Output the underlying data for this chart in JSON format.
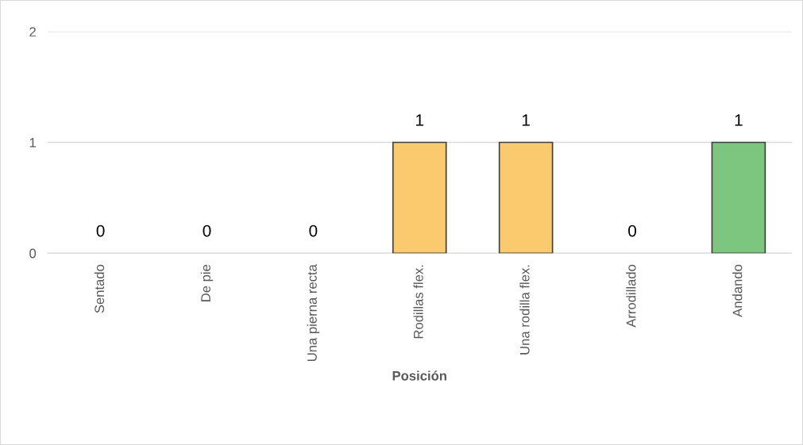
{
  "chart_data": {
    "type": "bar",
    "xlabel": "Posición",
    "categories": [
      "Sentado",
      "De pie",
      "Una pierna recta",
      "Rodillas flex.",
      "Una rodilla flex.",
      "Arrodillado",
      "Andando"
    ],
    "values": [
      0,
      0,
      0,
      1,
      1,
      0,
      1
    ],
    "colors": [
      "#fbc96e",
      "#fbc96e",
      "#fbc96e",
      "#fbc96e",
      "#fbc96e",
      "#fbc96e",
      "#7dc67f"
    ],
    "ylim": [
      0,
      2
    ],
    "yticks": [
      0,
      1,
      2
    ],
    "grid": "y",
    "data_labels": true,
    "legend": false
  }
}
